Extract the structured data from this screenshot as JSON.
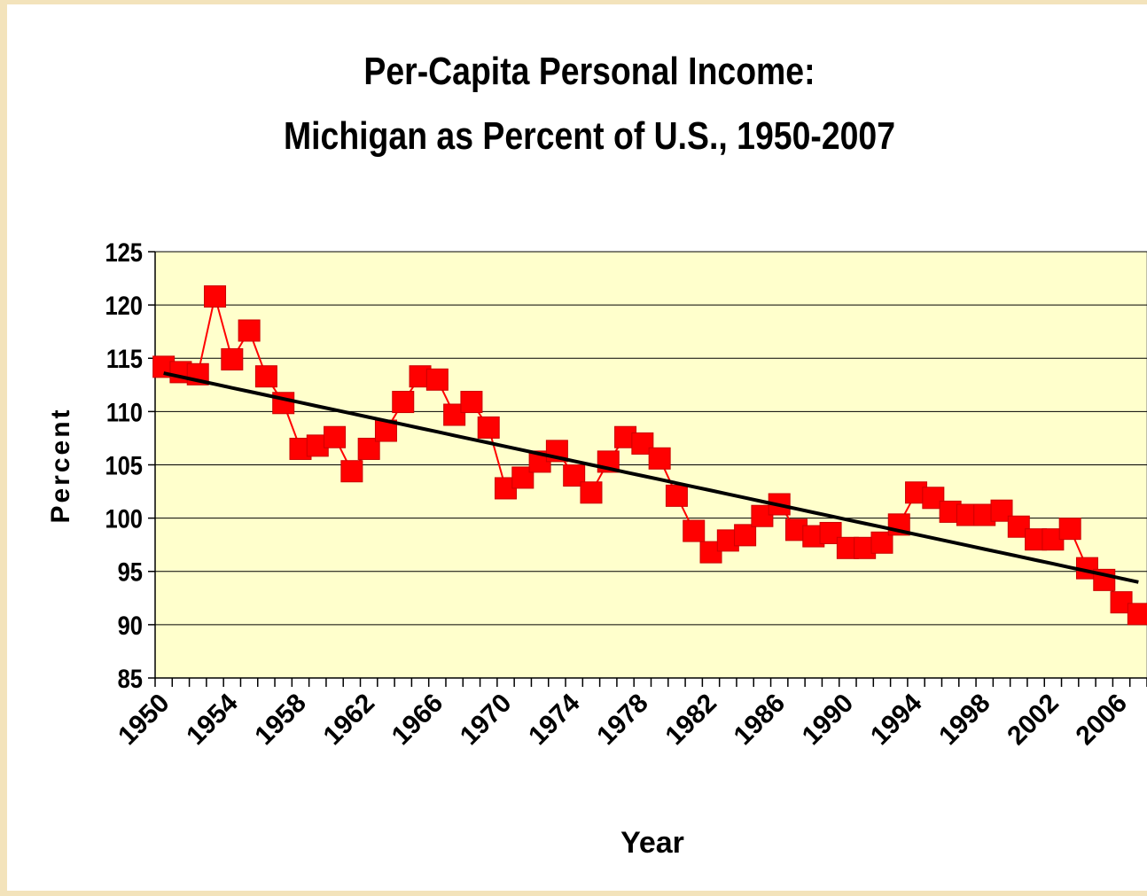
{
  "chart_data": {
    "type": "line",
    "title": [
      "Per-Capita Personal Income:",
      "Michigan as Percent of U.S., 1950-2007"
    ],
    "x_label": "Year",
    "y_label": "Percent",
    "categories": [
      "1950",
      null,
      null,
      null,
      "1954",
      null,
      null,
      null,
      "1958",
      null,
      null,
      null,
      "1962",
      null,
      null,
      null,
      "1966",
      null,
      null,
      null,
      "1970",
      null,
      null,
      null,
      "1974",
      null,
      null,
      null,
      "1978",
      null,
      null,
      null,
      "1982",
      null,
      null,
      null,
      "1986",
      null,
      null,
      null,
      "1990",
      null,
      null,
      null,
      "1994",
      null,
      null,
      null,
      "1998",
      null,
      null,
      null,
      "2002",
      null,
      null,
      null,
      "2006",
      null
    ],
    "series": [
      {
        "color": "#ff0000",
        "marker": "square",
        "values": [
          114.2,
          113.7,
          113.5,
          120.8,
          114.9,
          117.6,
          113.3,
          110.8,
          106.5,
          106.8,
          107.6,
          104.4,
          106.5,
          108.2,
          110.9,
          113.3,
          113.0,
          109.7,
          110.9,
          108.5,
          102.8,
          103.8,
          105.3,
          106.3,
          104.0,
          102.4,
          105.3,
          107.6,
          107.0,
          105.6,
          102.1,
          98.8,
          96.8,
          97.9,
          98.4,
          100.2,
          101.3,
          98.9,
          98.3,
          98.6,
          97.2,
          97.2,
          97.7,
          99.4,
          102.4,
          101.9,
          100.6,
          100.3,
          100.3,
          100.7,
          99.2,
          98.0,
          98.0,
          99.0,
          95.3,
          94.2,
          92.1,
          91.0
        ]
      },
      {
        "color": "#000000",
        "marker": "none",
        "values": [
          113.6,
          113.26,
          112.91,
          112.57,
          112.22,
          111.88,
          111.54,
          111.19,
          110.85,
          110.5,
          110.16,
          109.82,
          109.47,
          109.13,
          108.79,
          108.44,
          108.1,
          107.75,
          107.41,
          107.07,
          106.72,
          106.38,
          106.03,
          105.69,
          105.35,
          105.0,
          104.66,
          104.31,
          103.97,
          103.63,
          103.28,
          102.94,
          102.6,
          102.25,
          101.91,
          101.56,
          101.22,
          100.88,
          100.53,
          100.19,
          99.84,
          99.5,
          99.16,
          98.81,
          98.47,
          98.12,
          97.78,
          97.44,
          97.09,
          96.75,
          96.41,
          96.06,
          95.72,
          95.37,
          95.03,
          94.69,
          94.34,
          94.0
        ]
      }
    ],
    "ylim": [
      85,
      125
    ],
    "yticks": [
      85,
      90,
      95,
      100,
      105,
      110,
      115,
      120,
      125
    ],
    "grid": true
  }
}
